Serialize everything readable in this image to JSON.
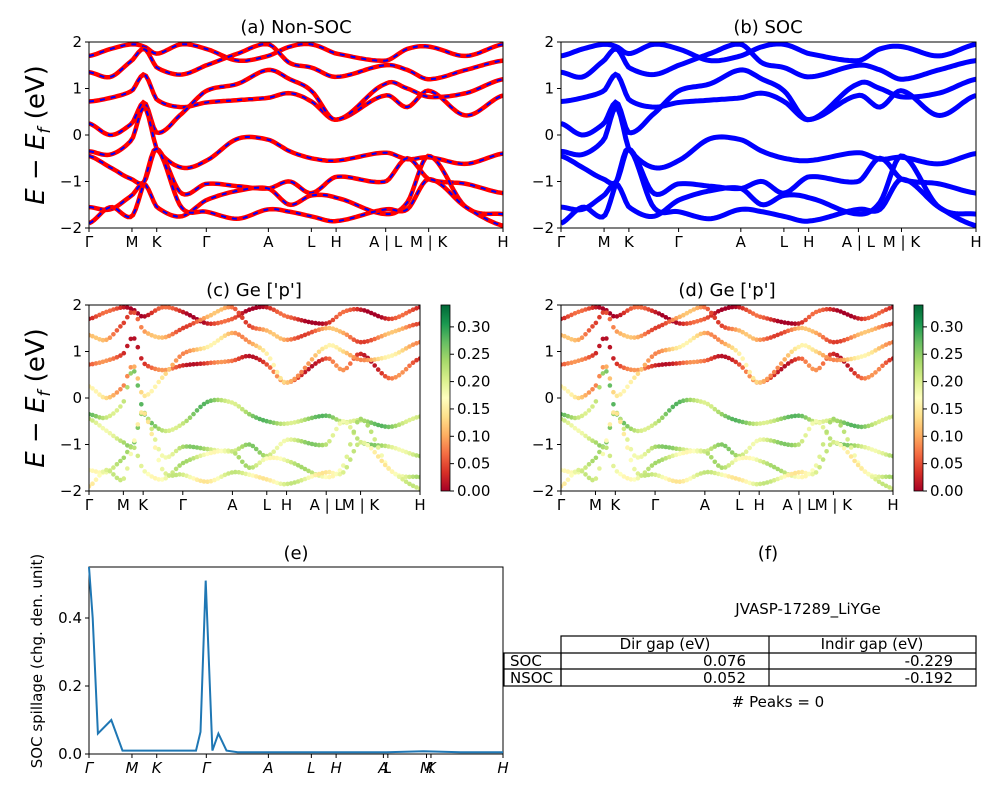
{
  "figure": {
    "panel_a_title": "(a) Non-SOC",
    "panel_b_title": "(b) SOC",
    "panel_c_title": "(c)  Ge ['p']",
    "panel_d_title": "(d) Ge ['p']",
    "panel_e_title": "(e)",
    "panel_f_title": "(f)",
    "energy_ylabel": "E − E_f (eV)",
    "spillage_ylabel": "SOC spillage (chg. den. unit)"
  },
  "colors": {
    "nonsoc_band": "#ff0000",
    "nonsoc_dash": "#0000ff",
    "soc_band": "#0000ff",
    "spillage_line": "#1f77b4",
    "colormap": "RdYlGn"
  },
  "kpath": {
    "labels": [
      "Γ",
      "M",
      "K",
      "Γ",
      "A",
      "L",
      "H",
      "A | L",
      "M | K",
      "H"
    ],
    "positions": [
      0,
      0.578,
      0.911,
      1.578,
      2.413,
      2.991,
      3.324,
      3.991,
      4.569,
      5.569
    ]
  },
  "chart_data": [
    {
      "panel": "a",
      "type": "line",
      "title": "(a) Non-SOC",
      "ylabel": "E − E_f (eV)",
      "ylim": [
        -2,
        2
      ],
      "yticks": [
        -2,
        -1,
        0,
        1,
        2
      ],
      "xtick_labels": [
        "Γ",
        "M",
        "K",
        "Γ",
        "A",
        "L",
        "H",
        "A | L",
        "M | K",
        "H"
      ],
      "style": "red solid with blue dashes",
      "band_samples_eV": {
        "band_1": [
          0.72,
          0.8,
          0.95,
          1.3,
          0.76,
          0.6,
          0.7,
          0.75,
          0.8,
          0.9,
          0.72,
          0.33,
          0.85,
          0.6,
          0.95,
          0.42,
          0.85
        ],
        "band_2": [
          0.25,
          0.0,
          0.25,
          0.7,
          0.05,
          0.45,
          0.95,
          1.1,
          1.4,
          1.2,
          0.95,
          0.33,
          1.1,
          1.0,
          0.82,
          0.9,
          1.2
        ],
        "band_3": [
          -0.35,
          -0.42,
          -0.1,
          0.6,
          -0.3,
          -0.7,
          -0.55,
          -0.08,
          -0.1,
          -0.35,
          -0.5,
          -0.55,
          -0.38,
          -0.52,
          -0.48,
          -0.62,
          -0.4
        ],
        "band_4": [
          -0.45,
          -0.7,
          -0.95,
          -1.0,
          -0.3,
          -1.25,
          -1.05,
          -1.1,
          -1.15,
          -1.0,
          -1.25,
          -0.9,
          -1.0,
          -0.5,
          -0.95,
          -1.05,
          -1.25
        ],
        "band_5": [
          -1.55,
          -1.6,
          -1.3,
          -1.05,
          -1.55,
          -1.75,
          -1.4,
          -1.2,
          -1.15,
          -1.5,
          -1.3,
          -1.35,
          -1.7,
          -1.45,
          -0.45,
          -1.55,
          -1.7
        ],
        "band_6": [
          -1.9,
          -1.55,
          -1.75,
          -1.0,
          -0.3,
          -1.55,
          -1.65,
          -1.8,
          -1.6,
          -1.65,
          -1.75,
          -1.85,
          -1.6,
          -1.6,
          -0.95,
          -1.55,
          -1.95
        ]
      }
    },
    {
      "panel": "b",
      "type": "line",
      "title": "(b) SOC",
      "ylim": [
        -2,
        2
      ],
      "yticks": [
        -2,
        -1,
        0,
        1,
        2
      ],
      "xtick_labels": [
        "Γ",
        "M",
        "K",
        "Γ",
        "A",
        "L",
        "H",
        "A | L",
        "M | K",
        "H"
      ],
      "style": "blue solid",
      "note": "same band structure as (a) with spin-orbit coupling"
    },
    {
      "panel": "c",
      "type": "scatter",
      "title": "(c)  Ge ['p']",
      "ylabel": "E − E_f (eV)",
      "ylim": [
        -2,
        2
      ],
      "yticks": [
        -2,
        -1,
        0,
        1,
        2
      ],
      "colorbar_range": [
        0.0,
        0.34
      ],
      "colorbar_ticks": [
        "0.00",
        "0.05",
        "0.10",
        "0.15",
        "0.20",
        "0.25",
        "0.30"
      ],
      "colormap": "RdYlGn",
      "xtick_labels": [
        "Γ",
        "M",
        "K",
        "Γ",
        "A",
        "L",
        "H",
        "A | L",
        "M | K",
        "H"
      ]
    },
    {
      "panel": "d",
      "type": "scatter",
      "title": "(d) Ge ['p']",
      "ylim": [
        -2,
        2
      ],
      "yticks": [
        -2,
        -1,
        0,
        1,
        2
      ],
      "colorbar_range": [
        0.0,
        0.34
      ],
      "colorbar_ticks": [
        "0.00",
        "0.05",
        "0.10",
        "0.15",
        "0.20",
        "0.25",
        "0.30"
      ],
      "colormap": "RdYlGn",
      "xtick_labels": [
        "Γ",
        "M",
        "K",
        "Γ",
        "A",
        "L",
        "H",
        "A | L",
        "M | K",
        "H"
      ]
    },
    {
      "panel": "e",
      "type": "line",
      "title": "(e)",
      "ylabel": "SOC spillage (chg. den. unit)",
      "ylim": [
        0,
        0.55
      ],
      "yticks": [
        "0.0",
        "0.2",
        "0.4"
      ],
      "xtick_labels": [
        "Γ",
        "M",
        "K",
        "Γ",
        "A",
        "L",
        "H",
        "A",
        "L",
        "M",
        "K",
        "H"
      ],
      "x": [
        0,
        0.05,
        0.12,
        0.3,
        0.45,
        0.55,
        0.7,
        1.0,
        1.3,
        1.44,
        1.5,
        1.57,
        1.66,
        1.74,
        1.85,
        2.0,
        2.5,
        3.0,
        4.0,
        4.5,
        5.0,
        5.569
      ],
      "values": [
        0.55,
        0.4,
        0.06,
        0.1,
        0.01,
        0.01,
        0.01,
        0.01,
        0.01,
        0.01,
        0.065,
        0.51,
        0.01,
        0.06,
        0.01,
        0.005,
        0.005,
        0.005,
        0.005,
        0.008,
        0.005,
        0.005
      ]
    },
    {
      "panel": "f",
      "type": "table",
      "title": "(f)",
      "caption": "JVASP-17289_LiYGe",
      "columns": [
        "",
        "Dir gap (eV)",
        "Indir gap (eV)"
      ],
      "rows": [
        [
          "SOC",
          "0.076",
          "-0.229"
        ],
        [
          "NSOC",
          "0.052",
          "-0.192"
        ]
      ],
      "footer": "# Peaks = 0"
    }
  ]
}
